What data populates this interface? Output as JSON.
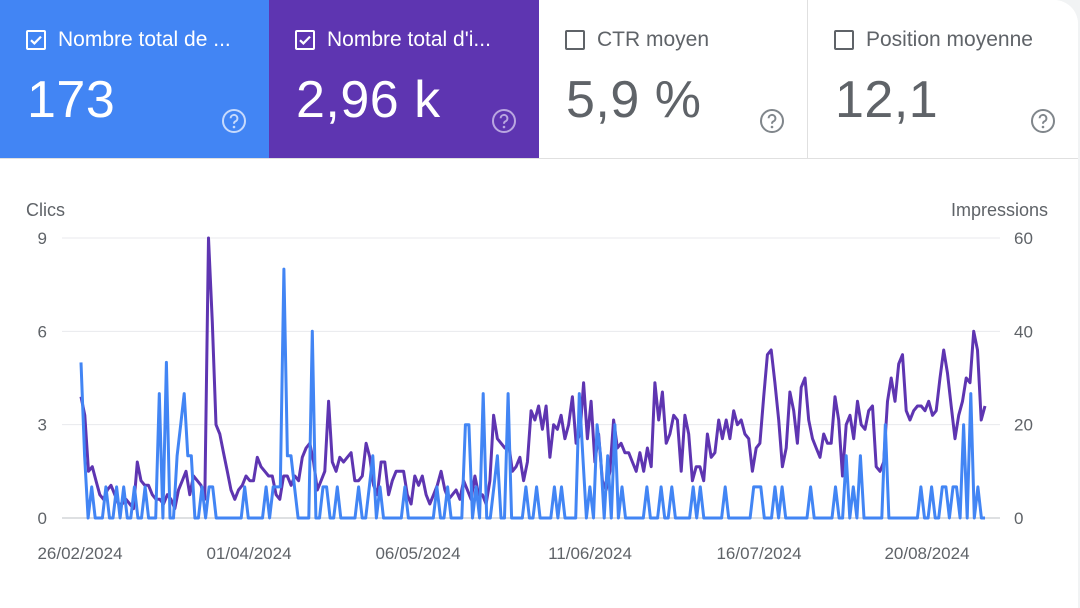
{
  "metrics": [
    {
      "label": "Nombre total de ...",
      "value": "173",
      "checked": true,
      "bg": "#4285f4"
    },
    {
      "label": "Nombre total d'i...",
      "value": "2,96 k",
      "checked": true,
      "bg": "#5e35b1"
    },
    {
      "label": "CTR moyen",
      "value": "5,9 %",
      "checked": false
    },
    {
      "label": "Position moyenne",
      "value": "12,1",
      "checked": false
    }
  ],
  "help_icon": "help-circle-icon",
  "chart_data": {
    "type": "line",
    "left_axis": {
      "title": "Clics",
      "ticks": [
        "9",
        "6",
        "3",
        "0"
      ],
      "ylim": [
        0,
        9
      ]
    },
    "right_axis": {
      "title": "Impressions",
      "ticks": [
        "60",
        "40",
        "20",
        "0"
      ],
      "ylim": [
        0,
        60
      ]
    },
    "x_ticks": [
      "26/02/2024",
      "01/04/2024",
      "06/05/2024",
      "11/06/2024",
      "16/07/2024",
      "20/08/2024"
    ],
    "grid": true,
    "series": [
      {
        "color": "#5e35b1",
        "axis": "right",
        "values": [
          26,
          22,
          10,
          11,
          8,
          5,
          4,
          6,
          7,
          5,
          3,
          3,
          4,
          3,
          2,
          12,
          8,
          7,
          7,
          5,
          4,
          4,
          3,
          5,
          4,
          2,
          6,
          8,
          10,
          5,
          9,
          8,
          7,
          4,
          60,
          42,
          20,
          18,
          14,
          10,
          6,
          4,
          6,
          7,
          9,
          8,
          8,
          13,
          11,
          10,
          9,
          9,
          5,
          4,
          9,
          9,
          7,
          9,
          8,
          13,
          15,
          16,
          12,
          6,
          8,
          10,
          25,
          12,
          10,
          13,
          12,
          13,
          14,
          8,
          8,
          9,
          16,
          13,
          7,
          5,
          12,
          12,
          5,
          8,
          10,
          10,
          10,
          5,
          3,
          9,
          7,
          9,
          5,
          3,
          5,
          7,
          10,
          6,
          4,
          5,
          6,
          4,
          8,
          6,
          4,
          9,
          5,
          5,
          3,
          8,
          22,
          17,
          16,
          15,
          16,
          10,
          11,
          13,
          8,
          12,
          23,
          21,
          24,
          19,
          24,
          13,
          20,
          19,
          22,
          17,
          20,
          26,
          16,
          18,
          29,
          17,
          25,
          12,
          18,
          8,
          6,
          10,
          21,
          15,
          16,
          14,
          14,
          12,
          10,
          14,
          10,
          15,
          11,
          29,
          21,
          27,
          16,
          18,
          22,
          21,
          10,
          22,
          18,
          8,
          11,
          11,
          8,
          18,
          13,
          14,
          21,
          17,
          21,
          17,
          23,
          20,
          21,
          18,
          17,
          10,
          15,
          16,
          26,
          35,
          36,
          29,
          21,
          11,
          15,
          27,
          23,
          16,
          28,
          30,
          21,
          17,
          15,
          13,
          18,
          16,
          16,
          26,
          21,
          9,
          20,
          22,
          17,
          25,
          20,
          19,
          23,
          24,
          11,
          10,
          12,
          25,
          30,
          25,
          33,
          35,
          23,
          21,
          23,
          24,
          24,
          23,
          25,
          22,
          23,
          30,
          36,
          31,
          24,
          17,
          22,
          25,
          30,
          29,
          40,
          36,
          21,
          24
        ],
        "values_note": "approximate daily impressions"
      },
      {
        "color": "#4285f4",
        "axis": "left",
        "values": [
          5,
          2,
          0,
          1,
          0,
          0,
          0,
          1,
          0,
          0,
          1,
          0,
          1,
          0,
          0,
          1,
          0,
          0,
          1,
          0,
          0,
          0,
          4,
          0,
          5,
          0,
          0,
          2,
          3,
          4,
          2,
          2,
          0,
          0,
          1,
          0,
          1,
          1,
          0,
          0,
          0,
          0,
          0,
          0,
          0,
          0,
          1,
          0,
          0,
          0,
          0,
          0,
          1,
          0,
          1,
          1,
          1,
          8,
          2,
          2,
          1,
          0,
          0,
          0,
          0,
          6,
          0,
          0,
          1,
          1,
          0,
          0,
          1,
          0,
          0,
          0,
          0,
          0,
          1,
          0,
          0,
          1,
          2,
          0,
          1,
          0,
          0,
          0,
          0,
          0,
          0,
          1,
          0,
          0,
          0,
          0,
          0,
          0,
          0,
          0,
          1,
          0,
          0,
          1,
          0,
          0,
          0,
          0,
          3,
          3,
          0,
          1,
          0,
          4,
          0,
          0,
          1,
          2,
          0,
          0,
          4,
          0,
          0,
          0,
          0,
          1,
          0,
          0,
          1,
          0,
          0,
          0,
          0,
          1,
          0,
          1,
          0,
          0,
          0,
          0,
          4,
          2,
          0,
          1,
          0,
          3,
          2,
          0,
          2,
          0,
          3,
          0,
          1,
          0,
          0,
          0,
          0,
          0,
          0,
          1,
          0,
          0,
          0,
          1,
          0,
          0,
          1,
          0,
          0,
          0,
          0,
          0,
          1,
          0,
          1,
          0,
          0,
          0,
          0,
          0,
          0,
          1,
          0,
          0,
          0,
          0,
          0,
          0,
          0,
          1,
          1,
          1,
          0,
          0,
          0,
          1,
          0,
          1,
          0,
          0,
          0,
          0,
          0,
          0,
          0,
          1,
          0,
          0,
          0,
          0,
          0,
          0,
          1,
          0,
          0,
          2,
          0,
          1,
          0,
          2,
          0,
          0,
          0,
          0,
          0,
          0,
          3,
          0,
          0,
          0,
          0,
          0,
          0,
          0,
          0,
          0,
          1,
          0,
          0,
          1,
          0,
          0,
          1,
          1,
          0,
          1,
          1,
          0,
          3,
          0,
          4,
          0,
          1,
          0,
          0
        ]
      }
    ]
  }
}
